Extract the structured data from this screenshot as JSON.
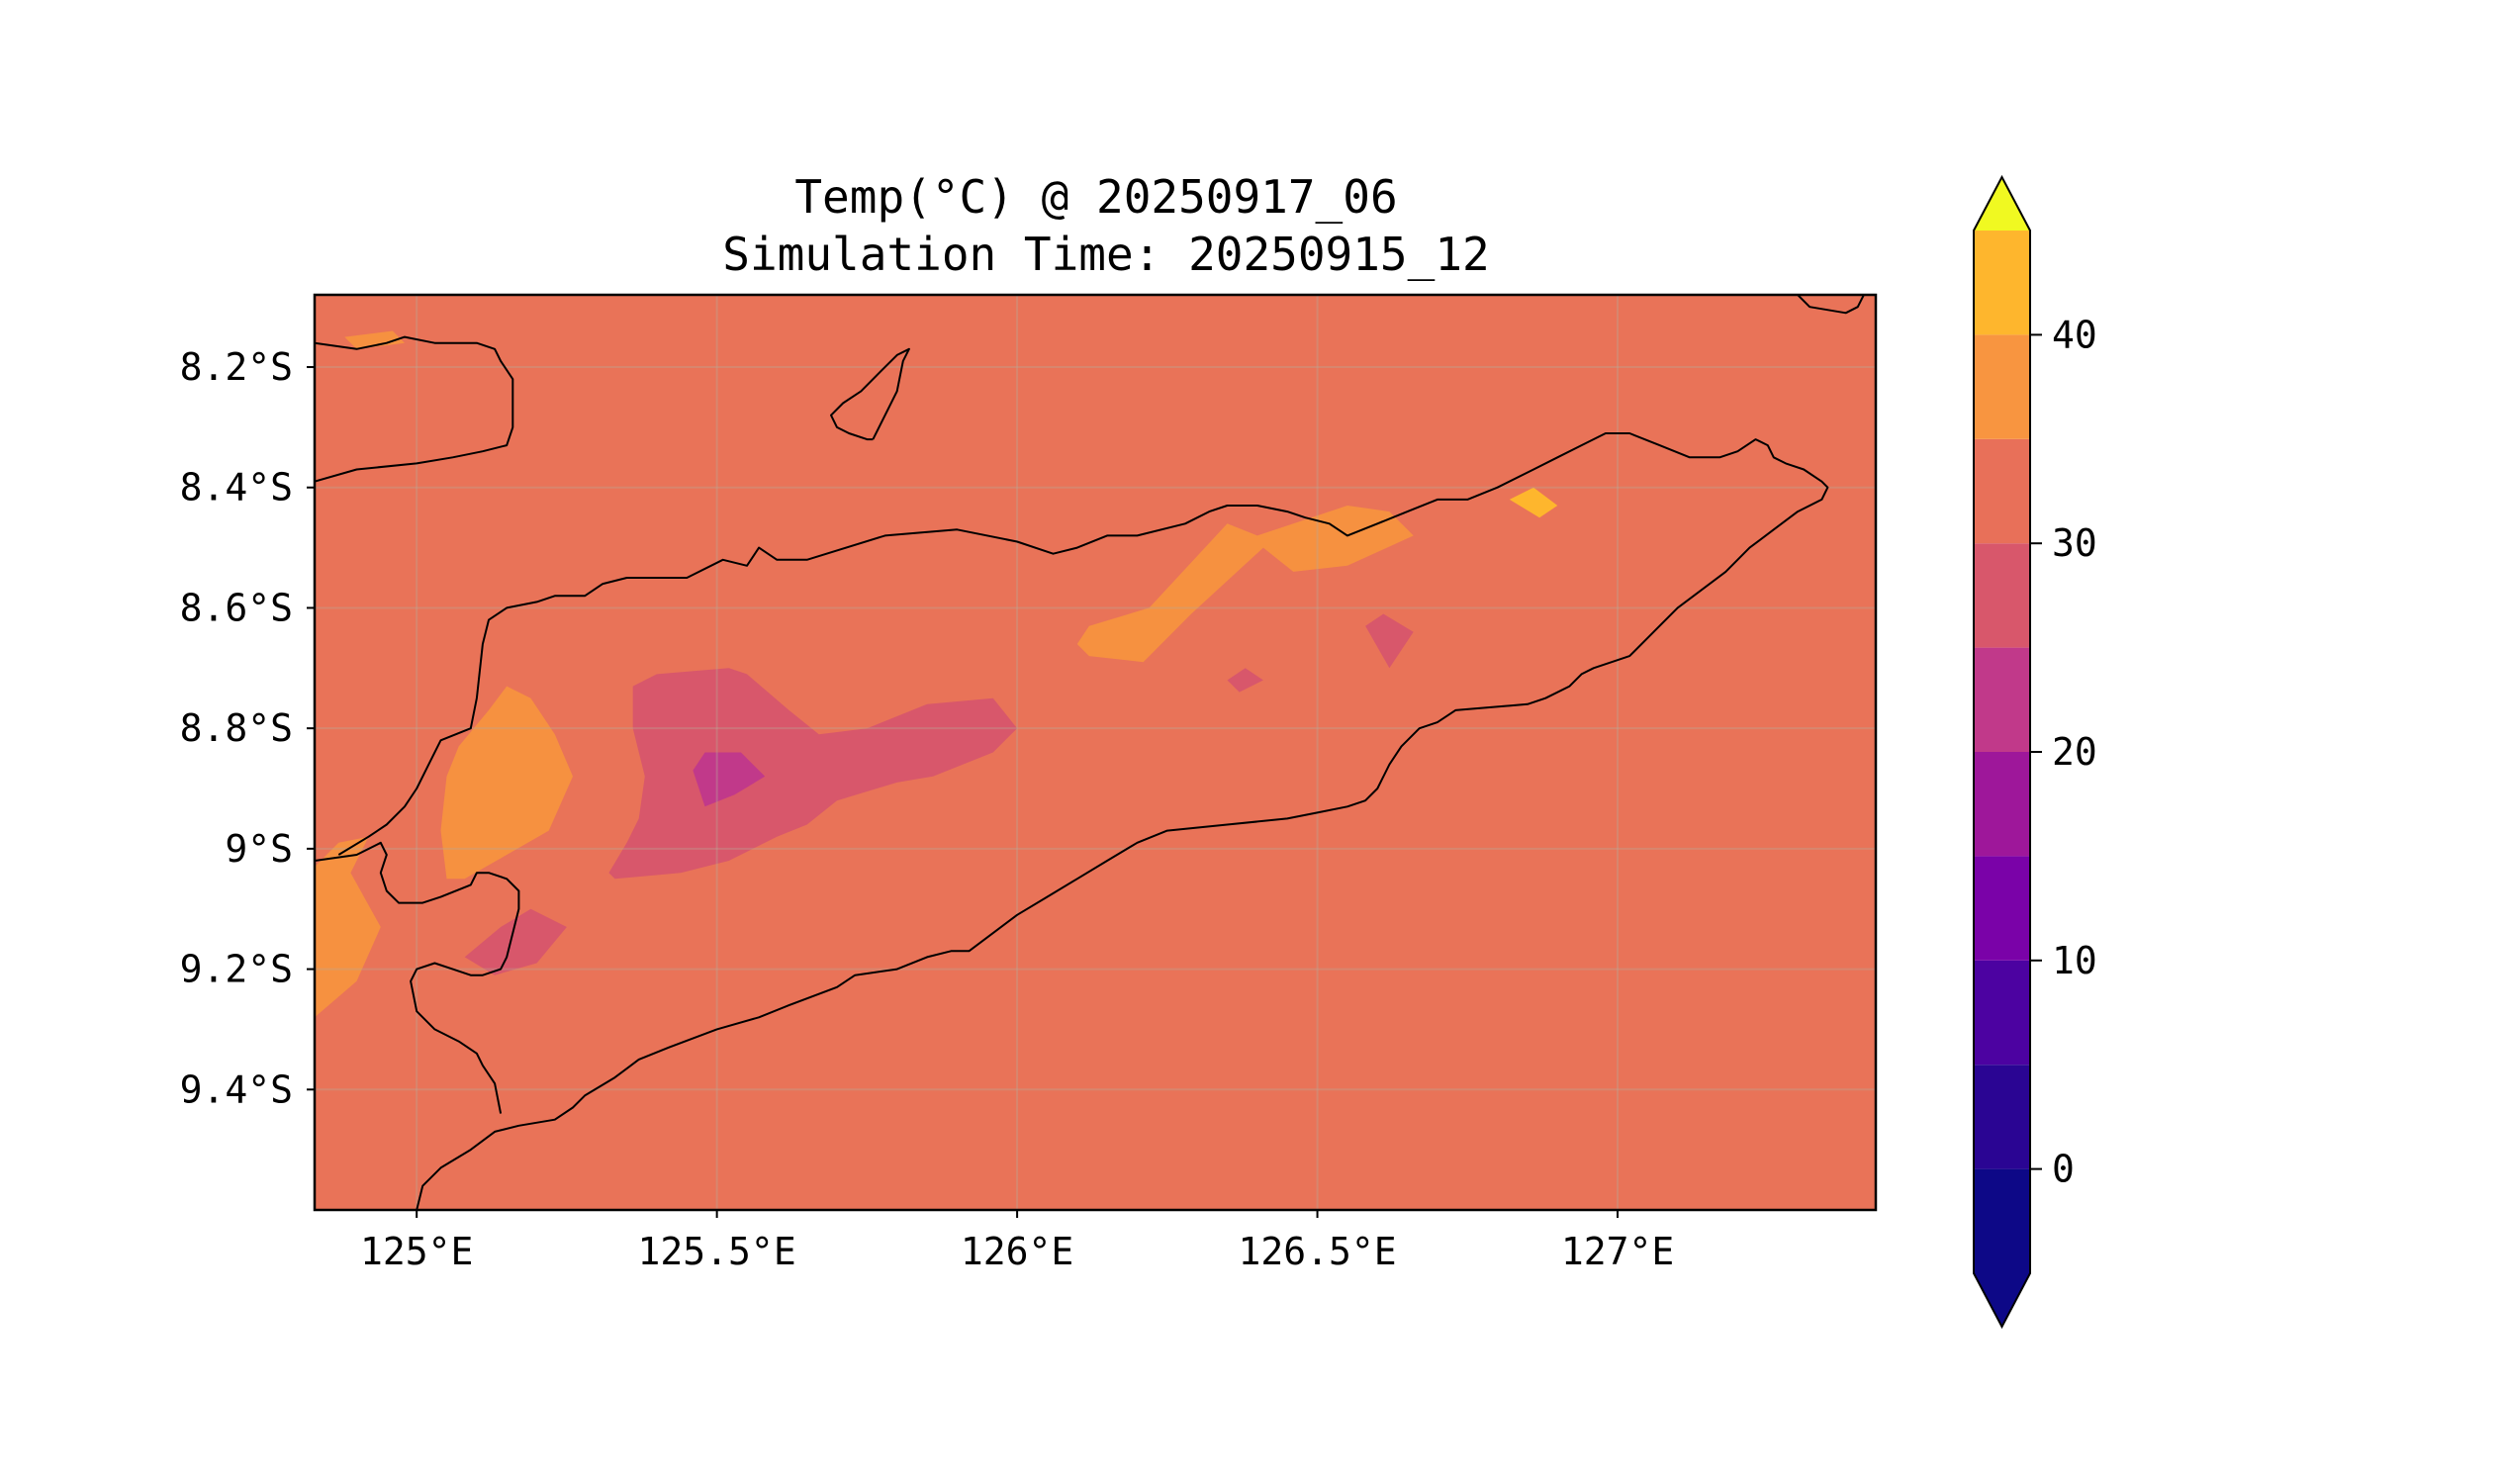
{
  "map": {
    "title_line1": "Temp(°C) @ 20250917_06",
    "title_line2": "Simulation Time: 20250915_12",
    "extent": {
      "lon_min": 124.83,
      "lon_max": 127.43,
      "lat_min": -9.6,
      "lat_max": -8.08
    },
    "x_ticks": [
      {
        "value": 125.0,
        "label": "125°E"
      },
      {
        "value": 125.5,
        "label": "125.5°E"
      },
      {
        "value": 126.0,
        "label": "126°E"
      },
      {
        "value": 126.5,
        "label": "126.5°E"
      },
      {
        "value": 127.0,
        "label": "127°E"
      }
    ],
    "y_ticks": [
      {
        "value": -8.2,
        "label": "8.2°S"
      },
      {
        "value": -8.4,
        "label": "8.4°S"
      },
      {
        "value": -8.6,
        "label": "8.6°S"
      },
      {
        "value": -8.8,
        "label": "8.8°S"
      },
      {
        "value": -9.0,
        "label": "9°S"
      },
      {
        "value": -9.2,
        "label": "9.2°S"
      },
      {
        "value": -9.4,
        "label": "9.4°S"
      }
    ],
    "gridlines": true,
    "background_level": "25-30",
    "fields": [
      {
        "level": "30-35",
        "coords": [
          [
            124.88,
            -8.15
          ],
          [
            124.96,
            -8.14
          ],
          [
            124.98,
            -8.16
          ],
          [
            124.9,
            -8.17
          ]
        ]
      },
      {
        "level": "30-35",
        "coords": [
          [
            125.07,
            -8.83
          ],
          [
            125.12,
            -8.77
          ],
          [
            125.15,
            -8.73
          ],
          [
            125.19,
            -8.75
          ],
          [
            125.23,
            -8.81
          ],
          [
            125.26,
            -8.88
          ],
          [
            125.22,
            -8.97
          ],
          [
            125.15,
            -9.01
          ],
          [
            125.08,
            -9.05
          ],
          [
            125.05,
            -9.05
          ],
          [
            125.04,
            -8.97
          ],
          [
            125.05,
            -8.88
          ]
        ]
      },
      {
        "level": "30-35",
        "coords": [
          [
            124.83,
            -9.03
          ],
          [
            124.87,
            -8.99
          ],
          [
            124.92,
            -8.98
          ],
          [
            124.89,
            -9.04
          ],
          [
            124.94,
            -9.13
          ],
          [
            124.9,
            -9.22
          ],
          [
            124.83,
            -9.28
          ]
        ]
      },
      {
        "level": "30-35",
        "coords": [
          [
            126.12,
            -8.63
          ],
          [
            126.22,
            -8.6
          ],
          [
            126.35,
            -8.46
          ],
          [
            126.4,
            -8.48
          ],
          [
            126.46,
            -8.46
          ],
          [
            126.55,
            -8.43
          ],
          [
            126.62,
            -8.44
          ],
          [
            126.66,
            -8.48
          ],
          [
            126.55,
            -8.53
          ],
          [
            126.46,
            -8.54
          ],
          [
            126.41,
            -8.5
          ],
          [
            126.29,
            -8.61
          ],
          [
            126.21,
            -8.69
          ],
          [
            126.12,
            -8.68
          ],
          [
            126.1,
            -8.66
          ]
        ]
      },
      {
        "level": "35-40",
        "coords": [
          [
            126.82,
            -8.42
          ],
          [
            126.86,
            -8.4
          ],
          [
            126.9,
            -8.43
          ],
          [
            126.87,
            -8.45
          ]
        ]
      },
      {
        "level": "20-25",
        "coords": [
          [
            125.36,
            -8.73
          ],
          [
            125.4,
            -8.71
          ],
          [
            125.52,
            -8.7
          ],
          [
            125.55,
            -8.71
          ],
          [
            125.62,
            -8.77
          ],
          [
            125.67,
            -8.81
          ],
          [
            125.75,
            -8.8
          ],
          [
            125.85,
            -8.76
          ],
          [
            125.96,
            -8.75
          ],
          [
            126.0,
            -8.8
          ],
          [
            125.96,
            -8.84
          ],
          [
            125.86,
            -8.88
          ],
          [
            125.8,
            -8.89
          ],
          [
            125.7,
            -8.92
          ],
          [
            125.65,
            -8.96
          ],
          [
            125.6,
            -8.98
          ],
          [
            125.52,
            -9.02
          ],
          [
            125.44,
            -9.04
          ],
          [
            125.33,
            -9.05
          ],
          [
            125.32,
            -9.04
          ],
          [
            125.35,
            -8.99
          ],
          [
            125.37,
            -8.95
          ],
          [
            125.38,
            -8.88
          ],
          [
            125.36,
            -8.8
          ]
        ]
      },
      {
        "level": "20-25",
        "coords": [
          [
            125.08,
            -9.18
          ],
          [
            125.14,
            -9.13
          ],
          [
            125.19,
            -9.1
          ],
          [
            125.25,
            -9.13
          ],
          [
            125.2,
            -9.19
          ],
          [
            125.13,
            -9.21
          ]
        ]
      },
      {
        "level": "20-25",
        "coords": [
          [
            126.58,
            -8.63
          ],
          [
            126.61,
            -8.61
          ],
          [
            126.66,
            -8.64
          ],
          [
            126.62,
            -8.7
          ]
        ]
      },
      {
        "level": "20-25",
        "coords": [
          [
            126.35,
            -8.72
          ],
          [
            126.38,
            -8.7
          ],
          [
            126.41,
            -8.72
          ],
          [
            126.37,
            -8.74
          ]
        ]
      },
      {
        "level": "15-20",
        "coords": [
          [
            125.46,
            -8.87
          ],
          [
            125.48,
            -8.84
          ],
          [
            125.54,
            -8.84
          ],
          [
            125.58,
            -8.88
          ],
          [
            125.53,
            -8.91
          ],
          [
            125.48,
            -8.93
          ]
        ]
      }
    ],
    "coastlines": [
      [
        [
          124.83,
          -8.16
        ],
        [
          124.9,
          -8.17
        ],
        [
          124.95,
          -8.16
        ],
        [
          124.98,
          -8.15
        ],
        [
          125.03,
          -8.16
        ],
        [
          125.07,
          -8.16
        ],
        [
          125.1,
          -8.16
        ],
        [
          125.13,
          -8.17
        ],
        [
          125.14,
          -8.19
        ],
        [
          125.16,
          -8.22
        ],
        [
          125.16,
          -8.26
        ],
        [
          125.16,
          -8.3
        ],
        [
          125.15,
          -8.33
        ],
        [
          125.11,
          -8.34
        ],
        [
          125.06,
          -8.35
        ],
        [
          125.0,
          -8.36
        ],
        [
          124.9,
          -8.37
        ],
        [
          124.83,
          -8.39
        ]
      ],
      [
        [
          125.76,
          -8.32
        ],
        [
          125.78,
          -8.28
        ],
        [
          125.8,
          -8.24
        ],
        [
          125.81,
          -8.19
        ],
        [
          125.82,
          -8.17
        ],
        [
          125.8,
          -8.18
        ],
        [
          125.77,
          -8.21
        ],
        [
          125.74,
          -8.24
        ],
        [
          125.71,
          -8.26
        ],
        [
          125.69,
          -8.28
        ],
        [
          125.7,
          -8.3
        ],
        [
          125.72,
          -8.31
        ],
        [
          125.75,
          -8.32
        ],
        [
          125.76,
          -8.32
        ]
      ],
      [
        [
          127.3,
          -8.08
        ],
        [
          127.32,
          -8.1
        ],
        [
          127.38,
          -8.11
        ],
        [
          127.4,
          -8.1
        ],
        [
          127.41,
          -8.08
        ]
      ],
      [
        [
          125.14,
          -9.44
        ],
        [
          125.13,
          -9.39
        ],
        [
          125.11,
          -9.36
        ],
        [
          125.1,
          -9.34
        ],
        [
          125.07,
          -9.32
        ],
        [
          125.03,
          -9.3
        ],
        [
          125.0,
          -9.27
        ],
        [
          124.99,
          -9.22
        ],
        [
          125.0,
          -9.2
        ],
        [
          125.03,
          -9.19
        ],
        [
          125.06,
          -9.2
        ],
        [
          125.09,
          -9.21
        ],
        [
          125.11,
          -9.21
        ],
        [
          125.14,
          -9.2
        ],
        [
          125.15,
          -9.18
        ],
        [
          125.16,
          -9.14
        ],
        [
          125.17,
          -9.1
        ],
        [
          125.17,
          -9.07
        ],
        [
          125.15,
          -9.05
        ],
        [
          125.12,
          -9.04
        ],
        [
          125.1,
          -9.04
        ],
        [
          125.09,
          -9.06
        ],
        [
          125.04,
          -9.08
        ],
        [
          125.01,
          -9.09
        ],
        [
          124.97,
          -9.09
        ],
        [
          124.95,
          -9.07
        ],
        [
          124.94,
          -9.04
        ],
        [
          124.95,
          -9.01
        ],
        [
          124.94,
          -8.99
        ],
        [
          124.9,
          -9.01
        ],
        [
          124.83,
          -9.02
        ]
      ],
      [
        [
          125.0,
          -9.6
        ],
        [
          125.01,
          -9.56
        ],
        [
          125.04,
          -9.53
        ],
        [
          125.09,
          -9.5
        ],
        [
          125.13,
          -9.47
        ],
        [
          125.17,
          -9.46
        ],
        [
          125.23,
          -9.45
        ],
        [
          125.26,
          -9.43
        ],
        [
          125.28,
          -9.41
        ],
        [
          125.33,
          -9.38
        ],
        [
          125.37,
          -9.35
        ],
        [
          125.42,
          -9.33
        ],
        [
          125.5,
          -9.3
        ],
        [
          125.57,
          -9.28
        ],
        [
          125.62,
          -9.26
        ],
        [
          125.7,
          -9.23
        ],
        [
          125.73,
          -9.21
        ],
        [
          125.8,
          -9.2
        ],
        [
          125.85,
          -9.18
        ],
        [
          125.89,
          -9.17
        ],
        [
          125.92,
          -9.17
        ],
        [
          125.96,
          -9.14
        ],
        [
          126.0,
          -9.11
        ],
        [
          126.05,
          -9.08
        ],
        [
          126.1,
          -9.05
        ],
        [
          126.15,
          -9.02
        ],
        [
          126.2,
          -8.99
        ],
        [
          126.25,
          -8.97
        ],
        [
          126.35,
          -8.96
        ],
        [
          126.45,
          -8.95
        ],
        [
          126.5,
          -8.94
        ],
        [
          126.55,
          -8.93
        ],
        [
          126.58,
          -8.92
        ],
        [
          126.6,
          -8.9
        ],
        [
          126.62,
          -8.86
        ],
        [
          126.64,
          -8.83
        ],
        [
          126.67,
          -8.8
        ],
        [
          126.7,
          -8.79
        ],
        [
          126.73,
          -8.77
        ],
        [
          126.85,
          -8.76
        ],
        [
          126.88,
          -8.75
        ],
        [
          126.92,
          -8.73
        ],
        [
          126.94,
          -8.71
        ],
        [
          126.96,
          -8.7
        ],
        [
          126.99,
          -8.69
        ],
        [
          127.02,
          -8.68
        ],
        [
          127.06,
          -8.64
        ],
        [
          127.1,
          -8.6
        ],
        [
          127.14,
          -8.57
        ],
        [
          127.18,
          -8.54
        ],
        [
          127.22,
          -8.5
        ],
        [
          127.26,
          -8.47
        ],
        [
          127.3,
          -8.44
        ],
        [
          127.34,
          -8.42
        ],
        [
          127.35,
          -8.4
        ],
        [
          127.34,
          -8.39
        ],
        [
          127.31,
          -8.37
        ],
        [
          127.28,
          -8.36
        ],
        [
          127.26,
          -8.35
        ],
        [
          127.25,
          -8.33
        ],
        [
          127.23,
          -8.32
        ],
        [
          127.2,
          -8.34
        ],
        [
          127.17,
          -8.35
        ],
        [
          127.12,
          -8.35
        ],
        [
          127.07,
          -8.33
        ],
        [
          127.02,
          -8.31
        ],
        [
          126.98,
          -8.31
        ],
        [
          126.94,
          -8.33
        ],
        [
          126.9,
          -8.35
        ],
        [
          126.86,
          -8.37
        ],
        [
          126.8,
          -8.4
        ],
        [
          126.75,
          -8.42
        ],
        [
          126.7,
          -8.42
        ],
        [
          126.65,
          -8.44
        ],
        [
          126.6,
          -8.46
        ],
        [
          126.55,
          -8.48
        ],
        [
          126.52,
          -8.46
        ],
        [
          126.48,
          -8.45
        ],
        [
          126.45,
          -8.44
        ],
        [
          126.4,
          -8.43
        ],
        [
          126.35,
          -8.43
        ],
        [
          126.32,
          -8.44
        ],
        [
          126.28,
          -8.46
        ],
        [
          126.2,
          -8.48
        ],
        [
          126.15,
          -8.48
        ],
        [
          126.1,
          -8.5
        ],
        [
          126.06,
          -8.51
        ],
        [
          126.0,
          -8.49
        ],
        [
          125.9,
          -8.47
        ],
        [
          125.78,
          -8.48
        ],
        [
          125.65,
          -8.52
        ],
        [
          125.6,
          -8.52
        ],
        [
          125.57,
          -8.5
        ],
        [
          125.55,
          -8.53
        ],
        [
          125.51,
          -8.52
        ],
        [
          125.45,
          -8.55
        ],
        [
          125.4,
          -8.55
        ],
        [
          125.35,
          -8.55
        ],
        [
          125.31,
          -8.56
        ],
        [
          125.28,
          -8.58
        ],
        [
          125.23,
          -8.58
        ],
        [
          125.2,
          -8.59
        ],
        [
          125.15,
          -8.6
        ],
        [
          125.12,
          -8.62
        ],
        [
          125.11,
          -8.66
        ],
        [
          125.1,
          -8.75
        ],
        [
          125.09,
          -8.8
        ],
        [
          125.04,
          -8.82
        ],
        [
          125.02,
          -8.86
        ],
        [
          125.0,
          -8.9
        ],
        [
          124.98,
          -8.93
        ],
        [
          124.95,
          -8.96
        ],
        [
          124.92,
          -8.98
        ],
        [
          124.87,
          -9.01
        ]
      ]
    ]
  },
  "colorbar": {
    "levels": [
      -5,
      0,
      5,
      10,
      15,
      20,
      25,
      30,
      35,
      40,
      45
    ],
    "colors": [
      "#0d0887",
      "#2a0593",
      "#4c02a1",
      "#7a02a8",
      "#9e179a",
      "#c1398a",
      "#d8576b",
      "#e87059",
      "#f89540",
      "#feb62d",
      "#f3e429"
    ],
    "under_color": "#0d0887",
    "over_color": "#f0f921",
    "extend": "both",
    "ticks": [
      {
        "value": 0,
        "label": "0"
      },
      {
        "value": 10,
        "label": "10"
      },
      {
        "value": 20,
        "label": "20"
      },
      {
        "value": 30,
        "label": "30"
      },
      {
        "value": 40,
        "label": "40"
      }
    ]
  },
  "level_colors": {
    "15-20": "#c1398a",
    "20-25": "#d8576b",
    "25-30": "#e97358",
    "30-35": "#f69140",
    "35-40": "#feb62d"
  }
}
